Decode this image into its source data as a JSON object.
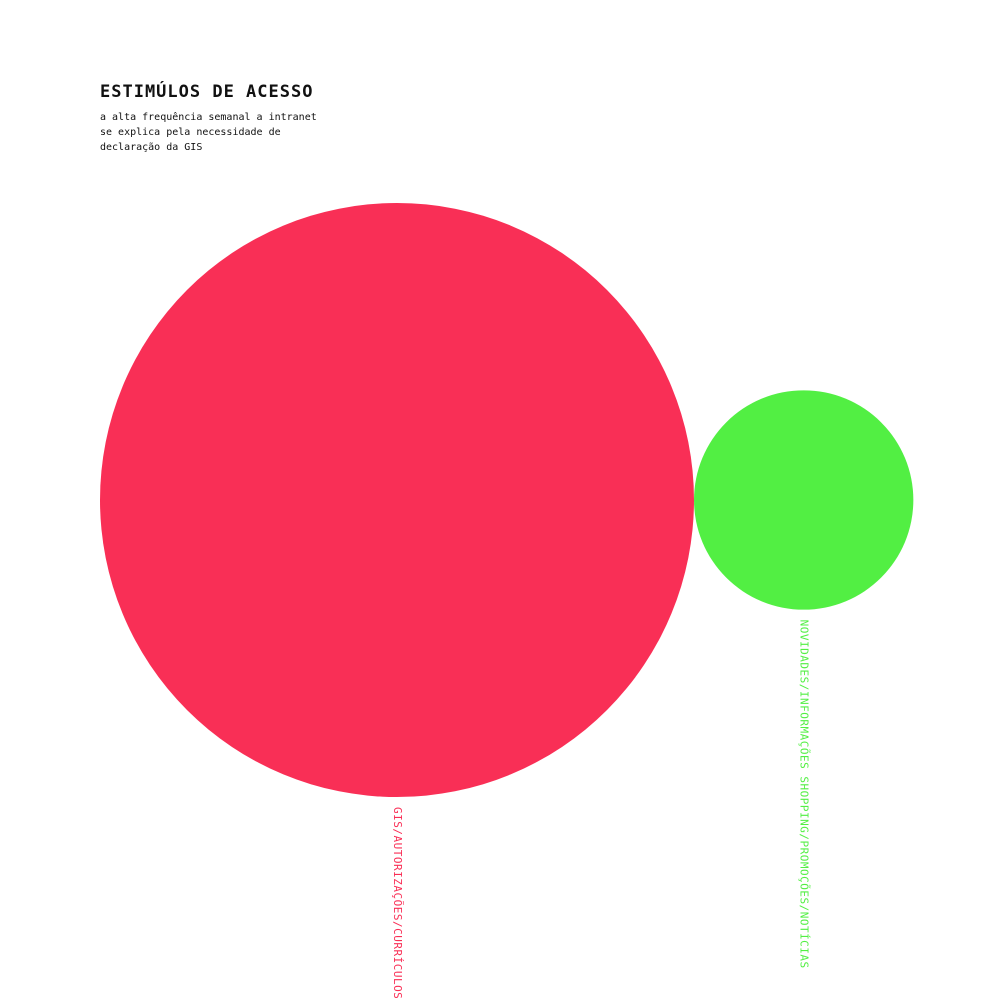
{
  "chart_data": {
    "type": "bubble",
    "title": "ESTIMÚLOS DE ACESSO",
    "subtitle": "a alta frequência semanal a intranet se explica pela necessidade de declaração da GIS",
    "series": [
      {
        "label": "GIS/AUTORIZAÇÕES/CURRÍCULOS",
        "value": 88,
        "color": "#f92f56"
      },
      {
        "label": "NOVIDADES/INFORMAÇÕES SHOPPING/PROMOÇÕES/NOTÍCIAS",
        "value": 12,
        "color": "#52ef43"
      }
    ]
  }
}
